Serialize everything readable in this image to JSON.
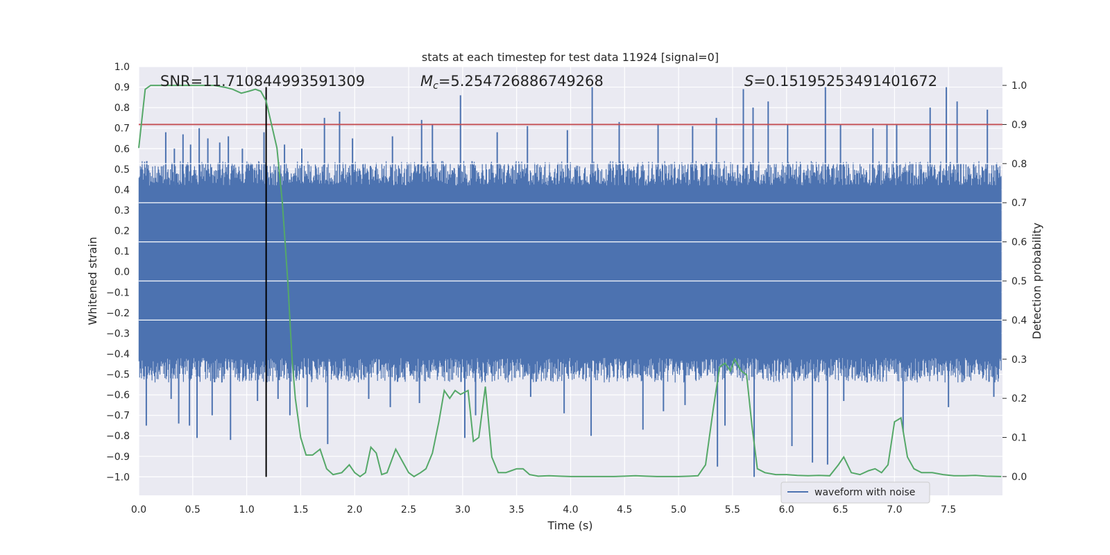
{
  "chart_data": {
    "type": "line",
    "title": "stats at each timestep for test data 11924 [signal=0]",
    "xlabel": "Time (s)",
    "ylabel": "Whitened strain",
    "y2label": "Detection probability",
    "xlim": [
      0.0,
      8.0
    ],
    "ylim": [
      -1.09,
      1.0
    ],
    "y2lim": [
      -0.048,
      1.048
    ],
    "xticks": [
      "0.0",
      "0.5",
      "1.0",
      "1.5",
      "2.0",
      "2.5",
      "3.0",
      "3.5",
      "4.0",
      "4.5",
      "5.0",
      "5.5",
      "6.0",
      "6.5",
      "7.0",
      "7.5"
    ],
    "xtick_values": [
      0.0,
      0.5,
      1.0,
      1.5,
      2.0,
      2.5,
      3.0,
      3.5,
      4.0,
      4.5,
      5.0,
      5.5,
      6.0,
      6.5,
      7.0,
      7.5
    ],
    "yticks": [
      "1.0",
      "0.9",
      "0.8",
      "0.7",
      "0.6",
      "0.5",
      "0.4",
      "0.3",
      "0.2",
      "0.1",
      "0.0",
      "−0.1",
      "−0.2",
      "−0.3",
      "−0.4",
      "−0.5",
      "−0.6",
      "−0.7",
      "−0.8",
      "−0.9",
      "−1.0"
    ],
    "ytick_values": [
      1.0,
      0.9,
      0.8,
      0.7,
      0.6,
      0.5,
      0.4,
      0.3,
      0.2,
      0.1,
      0.0,
      -0.1,
      -0.2,
      -0.3,
      -0.4,
      -0.5,
      -0.6,
      -0.7,
      -0.8,
      -0.9,
      -1.0
    ],
    "y2ticks": [
      "1.0",
      "0.9",
      "0.8",
      "0.7",
      "0.6",
      "0.5",
      "0.4",
      "0.3",
      "0.2",
      "0.1",
      "0.0"
    ],
    "y2tick_values": [
      1.0,
      0.9,
      0.8,
      0.7,
      0.6,
      0.5,
      0.4,
      0.3,
      0.2,
      0.1,
      0.0
    ],
    "annotations": {
      "snr": "SNR=11.710844993591309",
      "mc_prefix": "M",
      "mc_sub": "c",
      "mc_value": "=5.254726886749268",
      "s_prefix": "S",
      "s_value": "=0.15195253491401672"
    },
    "threshold_line": {
      "axis": "right",
      "value": 0.9,
      "color": "#c44e52"
    },
    "vertical_marker": {
      "x": 1.18,
      "color": "#000000"
    },
    "legend": {
      "label": "waveform with noise",
      "position": "lower-right"
    },
    "colors": {
      "waveform": "#4c72b0",
      "probability": "#55a868",
      "threshold": "#c44e52",
      "background": "#eaeaf2"
    },
    "series": [
      {
        "name": "waveform with noise",
        "kind": "noise",
        "envelope_positive": 0.42,
        "envelope_negative": -0.42,
        "spikes": [
          {
            "x": 0.25,
            "y": 0.68
          },
          {
            "x": 0.33,
            "y": 0.6
          },
          {
            "x": 0.41,
            "y": 0.67
          },
          {
            "x": 0.48,
            "y": 0.62
          },
          {
            "x": 0.56,
            "y": 0.7
          },
          {
            "x": 0.64,
            "y": 0.65
          },
          {
            "x": 0.75,
            "y": 0.63
          },
          {
            "x": 0.83,
            "y": 0.66
          },
          {
            "x": 0.96,
            "y": 0.6
          },
          {
            "x": 1.16,
            "y": 0.68
          },
          {
            "x": 1.35,
            "y": 0.62
          },
          {
            "x": 1.51,
            "y": 0.6
          },
          {
            "x": 1.72,
            "y": 0.75
          },
          {
            "x": 1.86,
            "y": 0.78
          },
          {
            "x": 1.98,
            "y": 0.65
          },
          {
            "x": 2.35,
            "y": 0.66
          },
          {
            "x": 2.62,
            "y": 0.74
          },
          {
            "x": 2.72,
            "y": 0.72
          },
          {
            "x": 2.98,
            "y": 0.86
          },
          {
            "x": 3.32,
            "y": 0.68
          },
          {
            "x": 3.6,
            "y": 0.71
          },
          {
            "x": 3.97,
            "y": 0.69
          },
          {
            "x": 4.2,
            "y": 0.9
          },
          {
            "x": 4.45,
            "y": 0.73
          },
          {
            "x": 4.81,
            "y": 0.72
          },
          {
            "x": 5.13,
            "y": 0.71
          },
          {
            "x": 5.35,
            "y": 0.75
          },
          {
            "x": 5.6,
            "y": 0.89
          },
          {
            "x": 5.69,
            "y": 0.8
          },
          {
            "x": 5.83,
            "y": 0.83
          },
          {
            "x": 6.01,
            "y": 0.72
          },
          {
            "x": 6.36,
            "y": 0.9
          },
          {
            "x": 6.5,
            "y": 0.72
          },
          {
            "x": 6.8,
            "y": 0.7
          },
          {
            "x": 6.93,
            "y": 0.72
          },
          {
            "x": 7.02,
            "y": 0.72
          },
          {
            "x": 7.33,
            "y": 0.8
          },
          {
            "x": 7.48,
            "y": 0.9
          },
          {
            "x": 7.58,
            "y": 0.83
          },
          {
            "x": 7.86,
            "y": 0.79
          },
          {
            "x": 0.07,
            "y": -0.75
          },
          {
            "x": 0.3,
            "y": -0.62
          },
          {
            "x": 0.37,
            "y": -0.74
          },
          {
            "x": 0.47,
            "y": -0.75
          },
          {
            "x": 0.54,
            "y": -0.81
          },
          {
            "x": 0.68,
            "y": -0.7
          },
          {
            "x": 0.85,
            "y": -0.82
          },
          {
            "x": 1.1,
            "y": -0.63
          },
          {
            "x": 1.29,
            "y": -0.62
          },
          {
            "x": 1.4,
            "y": -0.7
          },
          {
            "x": 1.56,
            "y": -0.66
          },
          {
            "x": 1.75,
            "y": -0.84
          },
          {
            "x": 2.13,
            "y": -0.62
          },
          {
            "x": 2.33,
            "y": -0.66
          },
          {
            "x": 2.6,
            "y": -0.64
          },
          {
            "x": 3.02,
            "y": -0.81
          },
          {
            "x": 3.12,
            "y": -0.7
          },
          {
            "x": 3.63,
            "y": -0.61
          },
          {
            "x": 3.94,
            "y": -0.69
          },
          {
            "x": 4.19,
            "y": -0.8
          },
          {
            "x": 4.67,
            "y": -0.77
          },
          {
            "x": 4.86,
            "y": -0.68
          },
          {
            "x": 5.06,
            "y": -0.65
          },
          {
            "x": 5.36,
            "y": -0.95
          },
          {
            "x": 5.43,
            "y": -0.75
          },
          {
            "x": 5.7,
            "y": -1.0
          },
          {
            "x": 6.05,
            "y": -0.85
          },
          {
            "x": 6.24,
            "y": -0.93
          },
          {
            "x": 6.38,
            "y": -0.94
          },
          {
            "x": 6.53,
            "y": -0.63
          },
          {
            "x": 7.08,
            "y": -0.78
          },
          {
            "x": 7.5,
            "y": -0.66
          },
          {
            "x": 7.92,
            "y": -0.61
          }
        ]
      },
      {
        "name": "Detection probability",
        "kind": "line",
        "axis": "right",
        "x": [
          0.0,
          0.06,
          0.11,
          0.2,
          0.3,
          0.4,
          0.5,
          0.6,
          0.7,
          0.8,
          0.87,
          0.95,
          1.02,
          1.08,
          1.13,
          1.18,
          1.23,
          1.28,
          1.33,
          1.38,
          1.42,
          1.45,
          1.5,
          1.55,
          1.61,
          1.68,
          1.74,
          1.8,
          1.88,
          1.95,
          2.0,
          2.05,
          2.1,
          2.15,
          2.2,
          2.25,
          2.3,
          2.38,
          2.44,
          2.5,
          2.55,
          2.61,
          2.66,
          2.72,
          2.78,
          2.83,
          2.88,
          2.93,
          2.98,
          3.05,
          3.1,
          3.15,
          3.21,
          3.27,
          3.33,
          3.4,
          3.45,
          3.5,
          3.56,
          3.62,
          3.7,
          3.8,
          3.9,
          4.0,
          4.2,
          4.4,
          4.5,
          4.6,
          4.7,
          4.8,
          4.9,
          5.0,
          5.1,
          5.18,
          5.25,
          5.32,
          5.38,
          5.43,
          5.48,
          5.52,
          5.58,
          5.63,
          5.68,
          5.73,
          5.8,
          5.9,
          6.0,
          6.1,
          6.2,
          6.3,
          6.4,
          6.48,
          6.53,
          6.6,
          6.68,
          6.76,
          6.82,
          6.88,
          6.94,
          7.0,
          7.06,
          7.12,
          7.18,
          7.25,
          7.35,
          7.45,
          7.55,
          7.65,
          7.75,
          7.85,
          7.99
        ],
        "y": [
          0.84,
          0.99,
          1.0,
          1.0,
          1.0,
          1.0,
          1.0,
          1.0,
          1.0,
          0.995,
          0.99,
          0.98,
          0.985,
          0.99,
          0.985,
          0.96,
          0.9,
          0.84,
          0.7,
          0.5,
          0.3,
          0.2,
          0.1,
          0.055,
          0.055,
          0.07,
          0.02,
          0.005,
          0.01,
          0.03,
          0.01,
          0.0,
          0.01,
          0.075,
          0.06,
          0.005,
          0.01,
          0.07,
          0.04,
          0.01,
          0.0,
          0.01,
          0.02,
          0.06,
          0.14,
          0.22,
          0.2,
          0.22,
          0.21,
          0.22,
          0.09,
          0.1,
          0.23,
          0.05,
          0.01,
          0.01,
          0.015,
          0.02,
          0.02,
          0.005,
          0.001,
          0.002,
          0.001,
          0.0,
          0.0,
          0.0,
          0.001,
          0.002,
          0.001,
          0.0,
          0.0,
          0.0,
          0.001,
          0.002,
          0.03,
          0.17,
          0.28,
          0.29,
          0.27,
          0.3,
          0.27,
          0.26,
          0.13,
          0.02,
          0.01,
          0.005,
          0.005,
          0.003,
          0.002,
          0.003,
          0.002,
          0.03,
          0.05,
          0.01,
          0.005,
          0.015,
          0.02,
          0.01,
          0.03,
          0.14,
          0.15,
          0.05,
          0.02,
          0.01,
          0.01,
          0.005,
          0.002,
          0.002,
          0.003,
          0.001,
          0.0
        ]
      }
    ]
  }
}
